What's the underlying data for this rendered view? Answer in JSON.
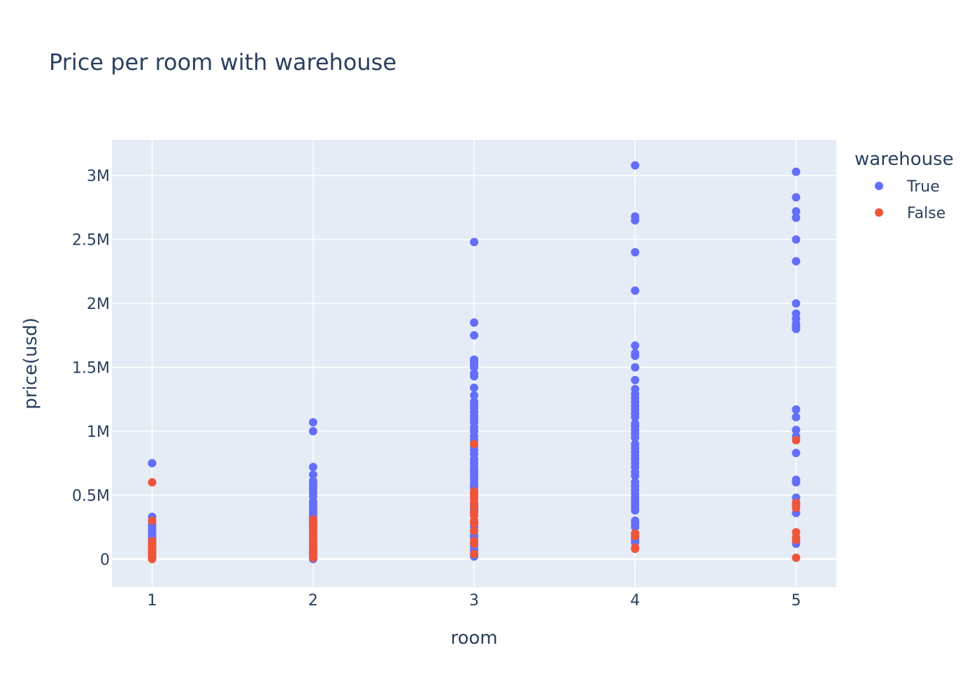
{
  "chart_data": {
    "type": "scatter",
    "title": "Price per room with warehouse",
    "xlabel": "room",
    "ylabel": "price(usd)",
    "xlim": [
      0.75,
      5.25
    ],
    "ylim": [
      -220000,
      3280000
    ],
    "x_ticks": [
      1,
      2,
      3,
      4,
      5
    ],
    "y_ticks": [
      {
        "value": 0,
        "label": "0"
      },
      {
        "value": 500000,
        "label": "0.5M"
      },
      {
        "value": 1000000,
        "label": "1M"
      },
      {
        "value": 1500000,
        "label": "1.5M"
      },
      {
        "value": 2000000,
        "label": "2M"
      },
      {
        "value": 2500000,
        "label": "2.5M"
      },
      {
        "value": 3000000,
        "label": "3M"
      }
    ],
    "grid": true,
    "legend": {
      "title": "warehouse",
      "position": "top-right"
    },
    "series": [
      {
        "name": "True",
        "color": "#636efa",
        "points": [
          [
            1,
            750000
          ],
          [
            1,
            330000
          ],
          [
            1,
            300000
          ],
          [
            1,
            270000
          ],
          [
            1,
            250000
          ],
          [
            1,
            230000
          ],
          [
            1,
            210000
          ],
          [
            1,
            190000
          ],
          [
            1,
            170000
          ],
          [
            1,
            150000
          ],
          [
            1,
            120000
          ],
          [
            1,
            90000
          ],
          [
            1,
            60000
          ],
          [
            1,
            30000
          ],
          [
            1,
            10000
          ],
          [
            2,
            1070000
          ],
          [
            2,
            1000000
          ],
          [
            2,
            720000
          ],
          [
            2,
            660000
          ],
          [
            2,
            610000
          ],
          [
            2,
            590000
          ],
          [
            2,
            570000
          ],
          [
            2,
            550000
          ],
          [
            2,
            520000
          ],
          [
            2,
            490000
          ],
          [
            2,
            450000
          ],
          [
            2,
            430000
          ],
          [
            2,
            410000
          ],
          [
            2,
            390000
          ],
          [
            2,
            370000
          ],
          [
            2,
            350000
          ],
          [
            2,
            330000
          ],
          [
            2,
            310000
          ],
          [
            2,
            280000
          ],
          [
            2,
            250000
          ],
          [
            2,
            200000
          ],
          [
            2,
            150000
          ],
          [
            2,
            100000
          ],
          [
            2,
            50000
          ],
          [
            2,
            0
          ],
          [
            3,
            2480000
          ],
          [
            3,
            1850000
          ],
          [
            3,
            1750000
          ],
          [
            3,
            1560000
          ],
          [
            3,
            1540000
          ],
          [
            3,
            1520000
          ],
          [
            3,
            1500000
          ],
          [
            3,
            1450000
          ],
          [
            3,
            1430000
          ],
          [
            3,
            1340000
          ],
          [
            3,
            1280000
          ],
          [
            3,
            1230000
          ],
          [
            3,
            1200000
          ],
          [
            3,
            1180000
          ],
          [
            3,
            1150000
          ],
          [
            3,
            1120000
          ],
          [
            3,
            1100000
          ],
          [
            3,
            1070000
          ],
          [
            3,
            1030000
          ],
          [
            3,
            1000000
          ],
          [
            3,
            960000
          ],
          [
            3,
            930000
          ],
          [
            3,
            880000
          ],
          [
            3,
            850000
          ],
          [
            3,
            820000
          ],
          [
            3,
            780000
          ],
          [
            3,
            750000
          ],
          [
            3,
            720000
          ],
          [
            3,
            700000
          ],
          [
            3,
            680000
          ],
          [
            3,
            650000
          ],
          [
            3,
            630000
          ],
          [
            3,
            600000
          ],
          [
            3,
            580000
          ],
          [
            3,
            560000
          ],
          [
            3,
            480000
          ],
          [
            3,
            430000
          ],
          [
            3,
            400000
          ],
          [
            3,
            380000
          ],
          [
            3,
            360000
          ],
          [
            3,
            280000
          ],
          [
            3,
            250000
          ],
          [
            3,
            190000
          ],
          [
            3,
            170000
          ],
          [
            3,
            120000
          ],
          [
            3,
            100000
          ],
          [
            3,
            70000
          ],
          [
            3,
            40000
          ],
          [
            3,
            20000
          ],
          [
            4,
            3080000
          ],
          [
            4,
            2680000
          ],
          [
            4,
            2650000
          ],
          [
            4,
            2400000
          ],
          [
            4,
            2100000
          ],
          [
            4,
            1670000
          ],
          [
            4,
            1610000
          ],
          [
            4,
            1590000
          ],
          [
            4,
            1500000
          ],
          [
            4,
            1400000
          ],
          [
            4,
            1330000
          ],
          [
            4,
            1290000
          ],
          [
            4,
            1260000
          ],
          [
            4,
            1230000
          ],
          [
            4,
            1200000
          ],
          [
            4,
            1170000
          ],
          [
            4,
            1140000
          ],
          [
            4,
            1110000
          ],
          [
            4,
            1060000
          ],
          [
            4,
            1040000
          ],
          [
            4,
            1010000
          ],
          [
            4,
            980000
          ],
          [
            4,
            950000
          ],
          [
            4,
            900000
          ],
          [
            4,
            870000
          ],
          [
            4,
            840000
          ],
          [
            4,
            810000
          ],
          [
            4,
            780000
          ],
          [
            4,
            750000
          ],
          [
            4,
            720000
          ],
          [
            4,
            680000
          ],
          [
            4,
            650000
          ],
          [
            4,
            600000
          ],
          [
            4,
            570000
          ],
          [
            4,
            540000
          ],
          [
            4,
            510000
          ],
          [
            4,
            480000
          ],
          [
            4,
            460000
          ],
          [
            4,
            430000
          ],
          [
            4,
            400000
          ],
          [
            4,
            380000
          ],
          [
            4,
            300000
          ],
          [
            4,
            280000
          ],
          [
            4,
            250000
          ],
          [
            4,
            200000
          ],
          [
            4,
            170000
          ],
          [
            4,
            150000
          ],
          [
            4,
            130000
          ],
          [
            5,
            3030000
          ],
          [
            5,
            2830000
          ],
          [
            5,
            2720000
          ],
          [
            5,
            2670000
          ],
          [
            5,
            2500000
          ],
          [
            5,
            2330000
          ],
          [
            5,
            2000000
          ],
          [
            5,
            1920000
          ],
          [
            5,
            1880000
          ],
          [
            5,
            1840000
          ],
          [
            5,
            1820000
          ],
          [
            5,
            1800000
          ],
          [
            5,
            1170000
          ],
          [
            5,
            1110000
          ],
          [
            5,
            1010000
          ],
          [
            5,
            960000
          ],
          [
            5,
            830000
          ],
          [
            5,
            620000
          ],
          [
            5,
            600000
          ],
          [
            5,
            480000
          ],
          [
            5,
            440000
          ],
          [
            5,
            360000
          ],
          [
            5,
            120000
          ]
        ]
      },
      {
        "name": "False",
        "color": "#ef553b",
        "points": [
          [
            1,
            600000
          ],
          [
            1,
            300000
          ],
          [
            1,
            140000
          ],
          [
            1,
            120000
          ],
          [
            1,
            100000
          ],
          [
            1,
            90000
          ],
          [
            1,
            80000
          ],
          [
            1,
            70000
          ],
          [
            1,
            60000
          ],
          [
            1,
            50000
          ],
          [
            1,
            40000
          ],
          [
            1,
            30000
          ],
          [
            1,
            20000
          ],
          [
            1,
            10000
          ],
          [
            1,
            0
          ],
          [
            2,
            310000
          ],
          [
            2,
            290000
          ],
          [
            2,
            270000
          ],
          [
            2,
            250000
          ],
          [
            2,
            230000
          ],
          [
            2,
            210000
          ],
          [
            2,
            190000
          ],
          [
            2,
            170000
          ],
          [
            2,
            150000
          ],
          [
            2,
            130000
          ],
          [
            2,
            110000
          ],
          [
            2,
            90000
          ],
          [
            2,
            70000
          ],
          [
            2,
            50000
          ],
          [
            2,
            30000
          ],
          [
            2,
            10000
          ],
          [
            3,
            900000
          ],
          [
            3,
            530000
          ],
          [
            3,
            510000
          ],
          [
            3,
            490000
          ],
          [
            3,
            470000
          ],
          [
            3,
            440000
          ],
          [
            3,
            410000
          ],
          [
            3,
            370000
          ],
          [
            3,
            340000
          ],
          [
            3,
            300000
          ],
          [
            3,
            280000
          ],
          [
            3,
            220000
          ],
          [
            3,
            140000
          ],
          [
            3,
            120000
          ],
          [
            3,
            40000
          ],
          [
            4,
            200000
          ],
          [
            4,
            180000
          ],
          [
            4,
            90000
          ],
          [
            4,
            80000
          ],
          [
            5,
            930000
          ],
          [
            5,
            440000
          ],
          [
            5,
            420000
          ],
          [
            5,
            400000
          ],
          [
            5,
            210000
          ],
          [
            5,
            170000
          ],
          [
            5,
            150000
          ],
          [
            5,
            10000
          ]
        ]
      }
    ]
  }
}
